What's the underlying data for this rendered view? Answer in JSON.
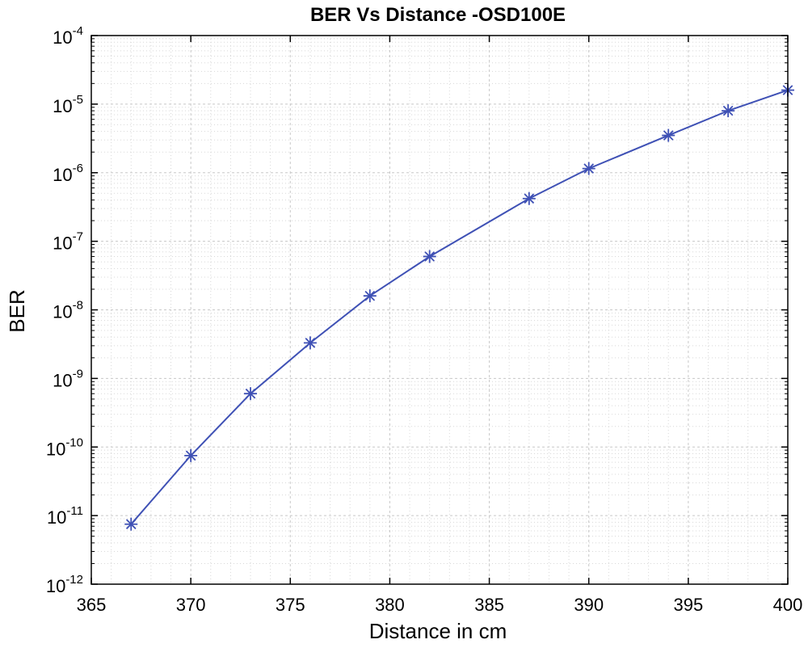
{
  "chart_data": {
    "type": "line",
    "title": "BER Vs Distance -OSD100E",
    "xlabel": "Distance in cm",
    "ylabel": "BER",
    "xlim": [
      365,
      400
    ],
    "ylim": [
      1e-12,
      0.0001
    ],
    "yscale": "log",
    "grid": true,
    "minor_grid": true,
    "x_ticks": [
      "365",
      "370",
      "375",
      "380",
      "385",
      "390",
      "395",
      "400"
    ],
    "y_ticks": [
      {
        "base": "10",
        "exp": "-12"
      },
      {
        "base": "10",
        "exp": "-11"
      },
      {
        "base": "10",
        "exp": "-10"
      },
      {
        "base": "10",
        "exp": "-9"
      },
      {
        "base": "10",
        "exp": "-8"
      },
      {
        "base": "10",
        "exp": "-7"
      },
      {
        "base": "10",
        "exp": "-6"
      },
      {
        "base": "10",
        "exp": "-5"
      },
      {
        "base": "10",
        "exp": "-4"
      }
    ],
    "series": [
      {
        "marker": "asterisk",
        "color": "#3f51b5",
        "x": [
          367,
          370,
          373,
          376,
          379,
          382,
          387,
          390,
          394,
          397,
          400
        ],
        "y": [
          7.5e-12,
          7.5e-11,
          6e-10,
          3.3e-09,
          1.6e-08,
          6e-08,
          4.2e-07,
          1.15e-06,
          3.5e-06,
          8e-06,
          1.6e-05
        ]
      }
    ]
  }
}
